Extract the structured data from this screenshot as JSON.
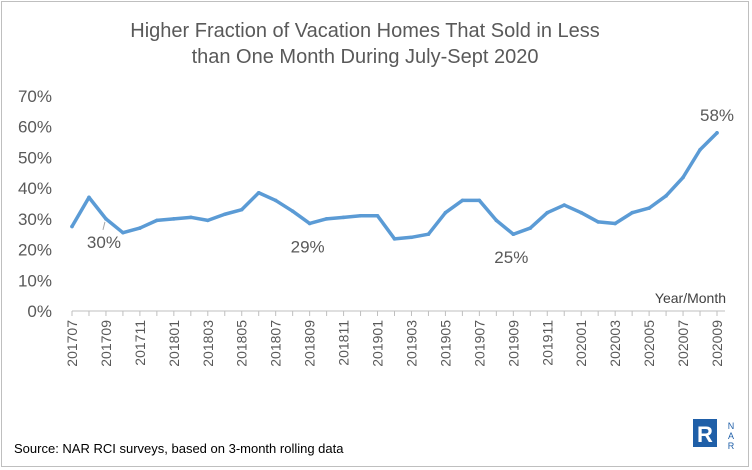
{
  "chart_data": {
    "type": "line",
    "title_line1": "Higher Fraction of Vacation Homes That Sold in Less",
    "title_line2": "than One Month During July-Sept 2020",
    "xlabel": "Year/Month",
    "ylabel": "",
    "ylim": [
      0,
      70
    ],
    "y_ticks": [
      "0%",
      "10%",
      "20%",
      "30%",
      "40%",
      "50%",
      "60%",
      "70%"
    ],
    "x": [
      "201707",
      "201708",
      "201709",
      "201710",
      "201711",
      "201712",
      "201801",
      "201802",
      "201803",
      "201804",
      "201805",
      "201806",
      "201807",
      "201808",
      "201809",
      "201810",
      "201811",
      "201812",
      "201901",
      "201902",
      "201903",
      "201904",
      "201905",
      "201906",
      "201907",
      "201908",
      "201909",
      "201910",
      "201911",
      "201912",
      "202001",
      "202002",
      "202003",
      "202004",
      "202005",
      "202006",
      "202007",
      "202008",
      "202009"
    ],
    "x_tick_labels": [
      "201707",
      "201709",
      "201711",
      "201801",
      "201803",
      "201805",
      "201807",
      "201809",
      "201811",
      "201901",
      "201903",
      "201905",
      "201907",
      "201909",
      "201911",
      "202001",
      "202003",
      "202005",
      "202007",
      "202009"
    ],
    "series": [
      {
        "color": "#5b9bd5",
        "values": [
          27.5,
          37,
          30,
          25.5,
          27,
          29.5,
          30,
          30.5,
          29.5,
          31.5,
          33,
          38.5,
          36,
          32.5,
          28.5,
          30,
          30.5,
          31,
          31,
          23.5,
          24,
          25,
          32,
          36,
          36,
          29.5,
          25,
          27,
          32,
          34.5,
          32,
          29,
          28.5,
          32,
          33.5,
          37.5,
          43.5,
          52.5,
          58
        ]
      }
    ],
    "annotations": [
      {
        "text": "30%",
        "x": "201709",
        "y": 30
      },
      {
        "text": "29%",
        "x": "201809",
        "y": 28.5
      },
      {
        "text": "25%",
        "x": "201909",
        "y": 25
      },
      {
        "text": "58%",
        "x": "202009",
        "y": 58
      }
    ],
    "grid": false,
    "legend": "none"
  },
  "footer": {
    "source": "Source: NAR RCI surveys, based on 3-month rolling data",
    "logo_text": "NAR",
    "logo_mark": "R"
  }
}
